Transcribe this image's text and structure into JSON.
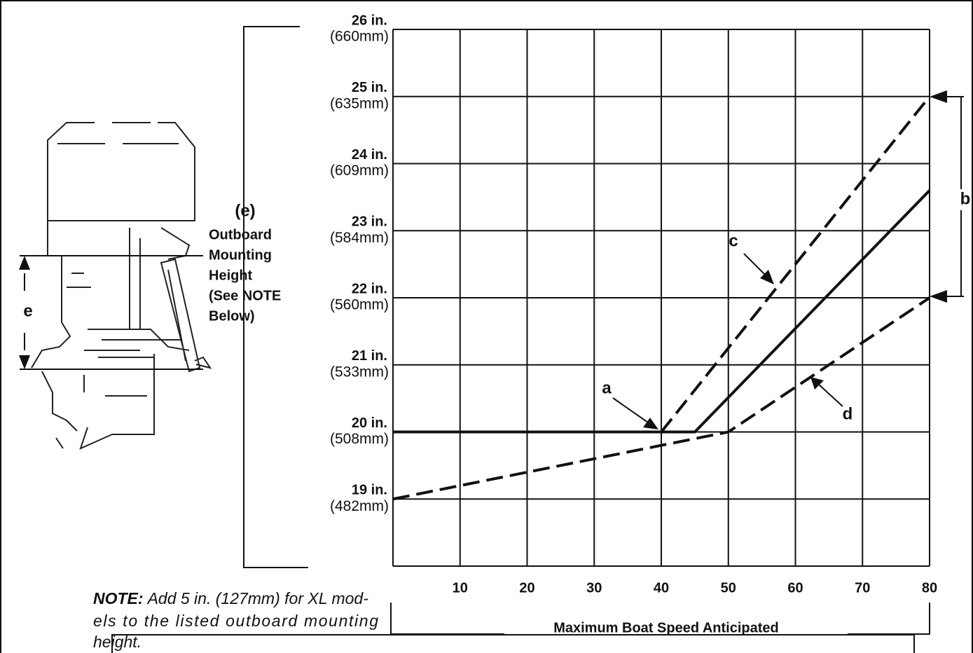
{
  "chart_data": {
    "type": "line",
    "xlabel": "Maximum Boat Speed Anticipated",
    "ylabel_lines": [
      "(e)",
      "Outboard",
      "Mounting",
      "Height",
      "(See NOTE",
      "Below)"
    ],
    "xlim": [
      0,
      80
    ],
    "ylim": [
      18,
      26
    ],
    "xticks": [
      10,
      20,
      30,
      40,
      50,
      60,
      70,
      80
    ],
    "yticks": [
      {
        "value": 26,
        "label": "26 in.",
        "metric": "(660mm)"
      },
      {
        "value": 25,
        "label": "25 in.",
        "metric": "(635mm)"
      },
      {
        "value": 24,
        "label": "24 in.",
        "metric": "(609mm)"
      },
      {
        "value": 23,
        "label": "23 in.",
        "metric": "(584mm)"
      },
      {
        "value": 22,
        "label": "22 in.",
        "metric": "(560mm)"
      },
      {
        "value": 21,
        "label": "21 in.",
        "metric": "(533mm)"
      },
      {
        "value": 20,
        "label": "20 in.",
        "metric": "(508mm)"
      },
      {
        "value": 19,
        "label": "19 in.",
        "metric": "(482mm)"
      }
    ],
    "grid": true,
    "series": [
      {
        "color": "#111111",
        "dash": false,
        "x": [
          0,
          45,
          80
        ],
        "values": [
          20,
          20,
          23.6
        ]
      },
      {
        "color": "#111111",
        "dash": true,
        "x": [
          40,
          80
        ],
        "values": [
          20,
          25
        ]
      },
      {
        "color": "#111111",
        "dash": true,
        "x": [
          0,
          50,
          80
        ],
        "values": [
          19,
          20,
          22
        ]
      }
    ],
    "annotations": [
      "a",
      "b",
      "c",
      "d",
      "e"
    ],
    "note_label": "NOTE:",
    "note_lines": [
      "Add 5 in. (127mm) for XL mod-",
      "els to the listed outboard mounting",
      "height."
    ]
  }
}
